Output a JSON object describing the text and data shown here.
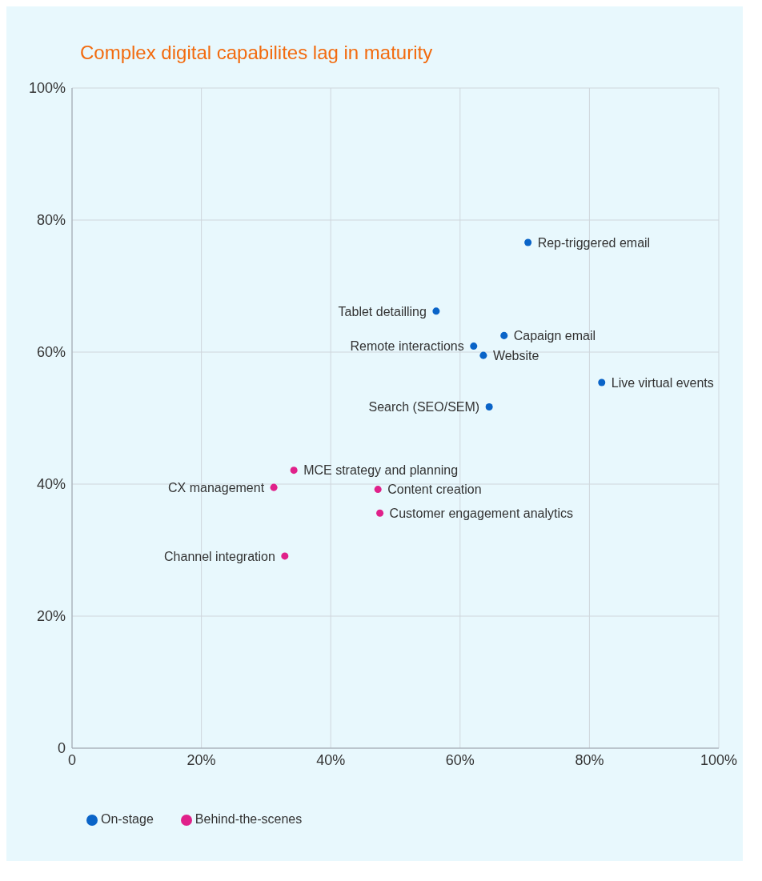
{
  "chart_data": {
    "type": "scatter",
    "title": "Complex digital capabilites lag in maturity",
    "xlim": [
      0,
      100
    ],
    "ylim": [
      0,
      100
    ],
    "xticks": [
      {
        "value": 0,
        "label": "0"
      },
      {
        "value": 20,
        "label": "20%"
      },
      {
        "value": 40,
        "label": "40%"
      },
      {
        "value": 60,
        "label": "60%"
      },
      {
        "value": 80,
        "label": "80%"
      },
      {
        "value": 100,
        "label": "100%"
      }
    ],
    "yticks": [
      {
        "value": 0,
        "label": "0"
      },
      {
        "value": 20,
        "label": "20%"
      },
      {
        "value": 40,
        "label": "40%"
      },
      {
        "value": 60,
        "label": "60%"
      },
      {
        "value": 80,
        "label": "80%"
      },
      {
        "value": 100,
        "label": "100%"
      }
    ],
    "grid": true,
    "legend": "bottom left",
    "marker": "circle",
    "series": [
      {
        "name": "On-stage",
        "color": "#0a64c8",
        "x": [
          70.5,
          56.3,
          66.8,
          62.1,
          63.6,
          81.9,
          64.5
        ],
        "values": [
          76.6,
          66.2,
          62.5,
          60.9,
          59.5,
          55.4,
          51.7
        ]
      },
      {
        "name": "Behind-the-scenes",
        "color": "#e0218a",
        "x": [
          34.3,
          31.2,
          47.3,
          47.6,
          32.9
        ],
        "values": [
          42.1,
          39.5,
          39.2,
          35.6,
          29.1
        ]
      }
    ],
    "annotations": [
      {
        "text": "Rep-triggered email",
        "x": 70.5,
        "y": 76.6
      },
      {
        "text": "Tablet detailling",
        "x": 56.3,
        "y": 66.2
      },
      {
        "text": "Capaign email",
        "x": 66.8,
        "y": 62.5
      },
      {
        "text": "Remote interactions",
        "x": 62.1,
        "y": 60.9
      },
      {
        "text": "Website",
        "x": 63.6,
        "y": 59.5
      },
      {
        "text": "Live virtual events",
        "x": 81.9,
        "y": 55.4
      },
      {
        "text": "Search (SEO/SEM)",
        "x": 64.5,
        "y": 51.7
      },
      {
        "text": "MCE strategy and planning",
        "x": 34.3,
        "y": 42.1
      },
      {
        "text": "CX management",
        "x": 31.2,
        "y": 39.5
      },
      {
        "text": "Content creation",
        "x": 47.3,
        "y": 39.2
      },
      {
        "text": "Customer engagement analytics",
        "x": 47.6,
        "y": 35.6
      },
      {
        "text": "Channel integration",
        "x": 32.9,
        "y": 29.1
      }
    ]
  }
}
